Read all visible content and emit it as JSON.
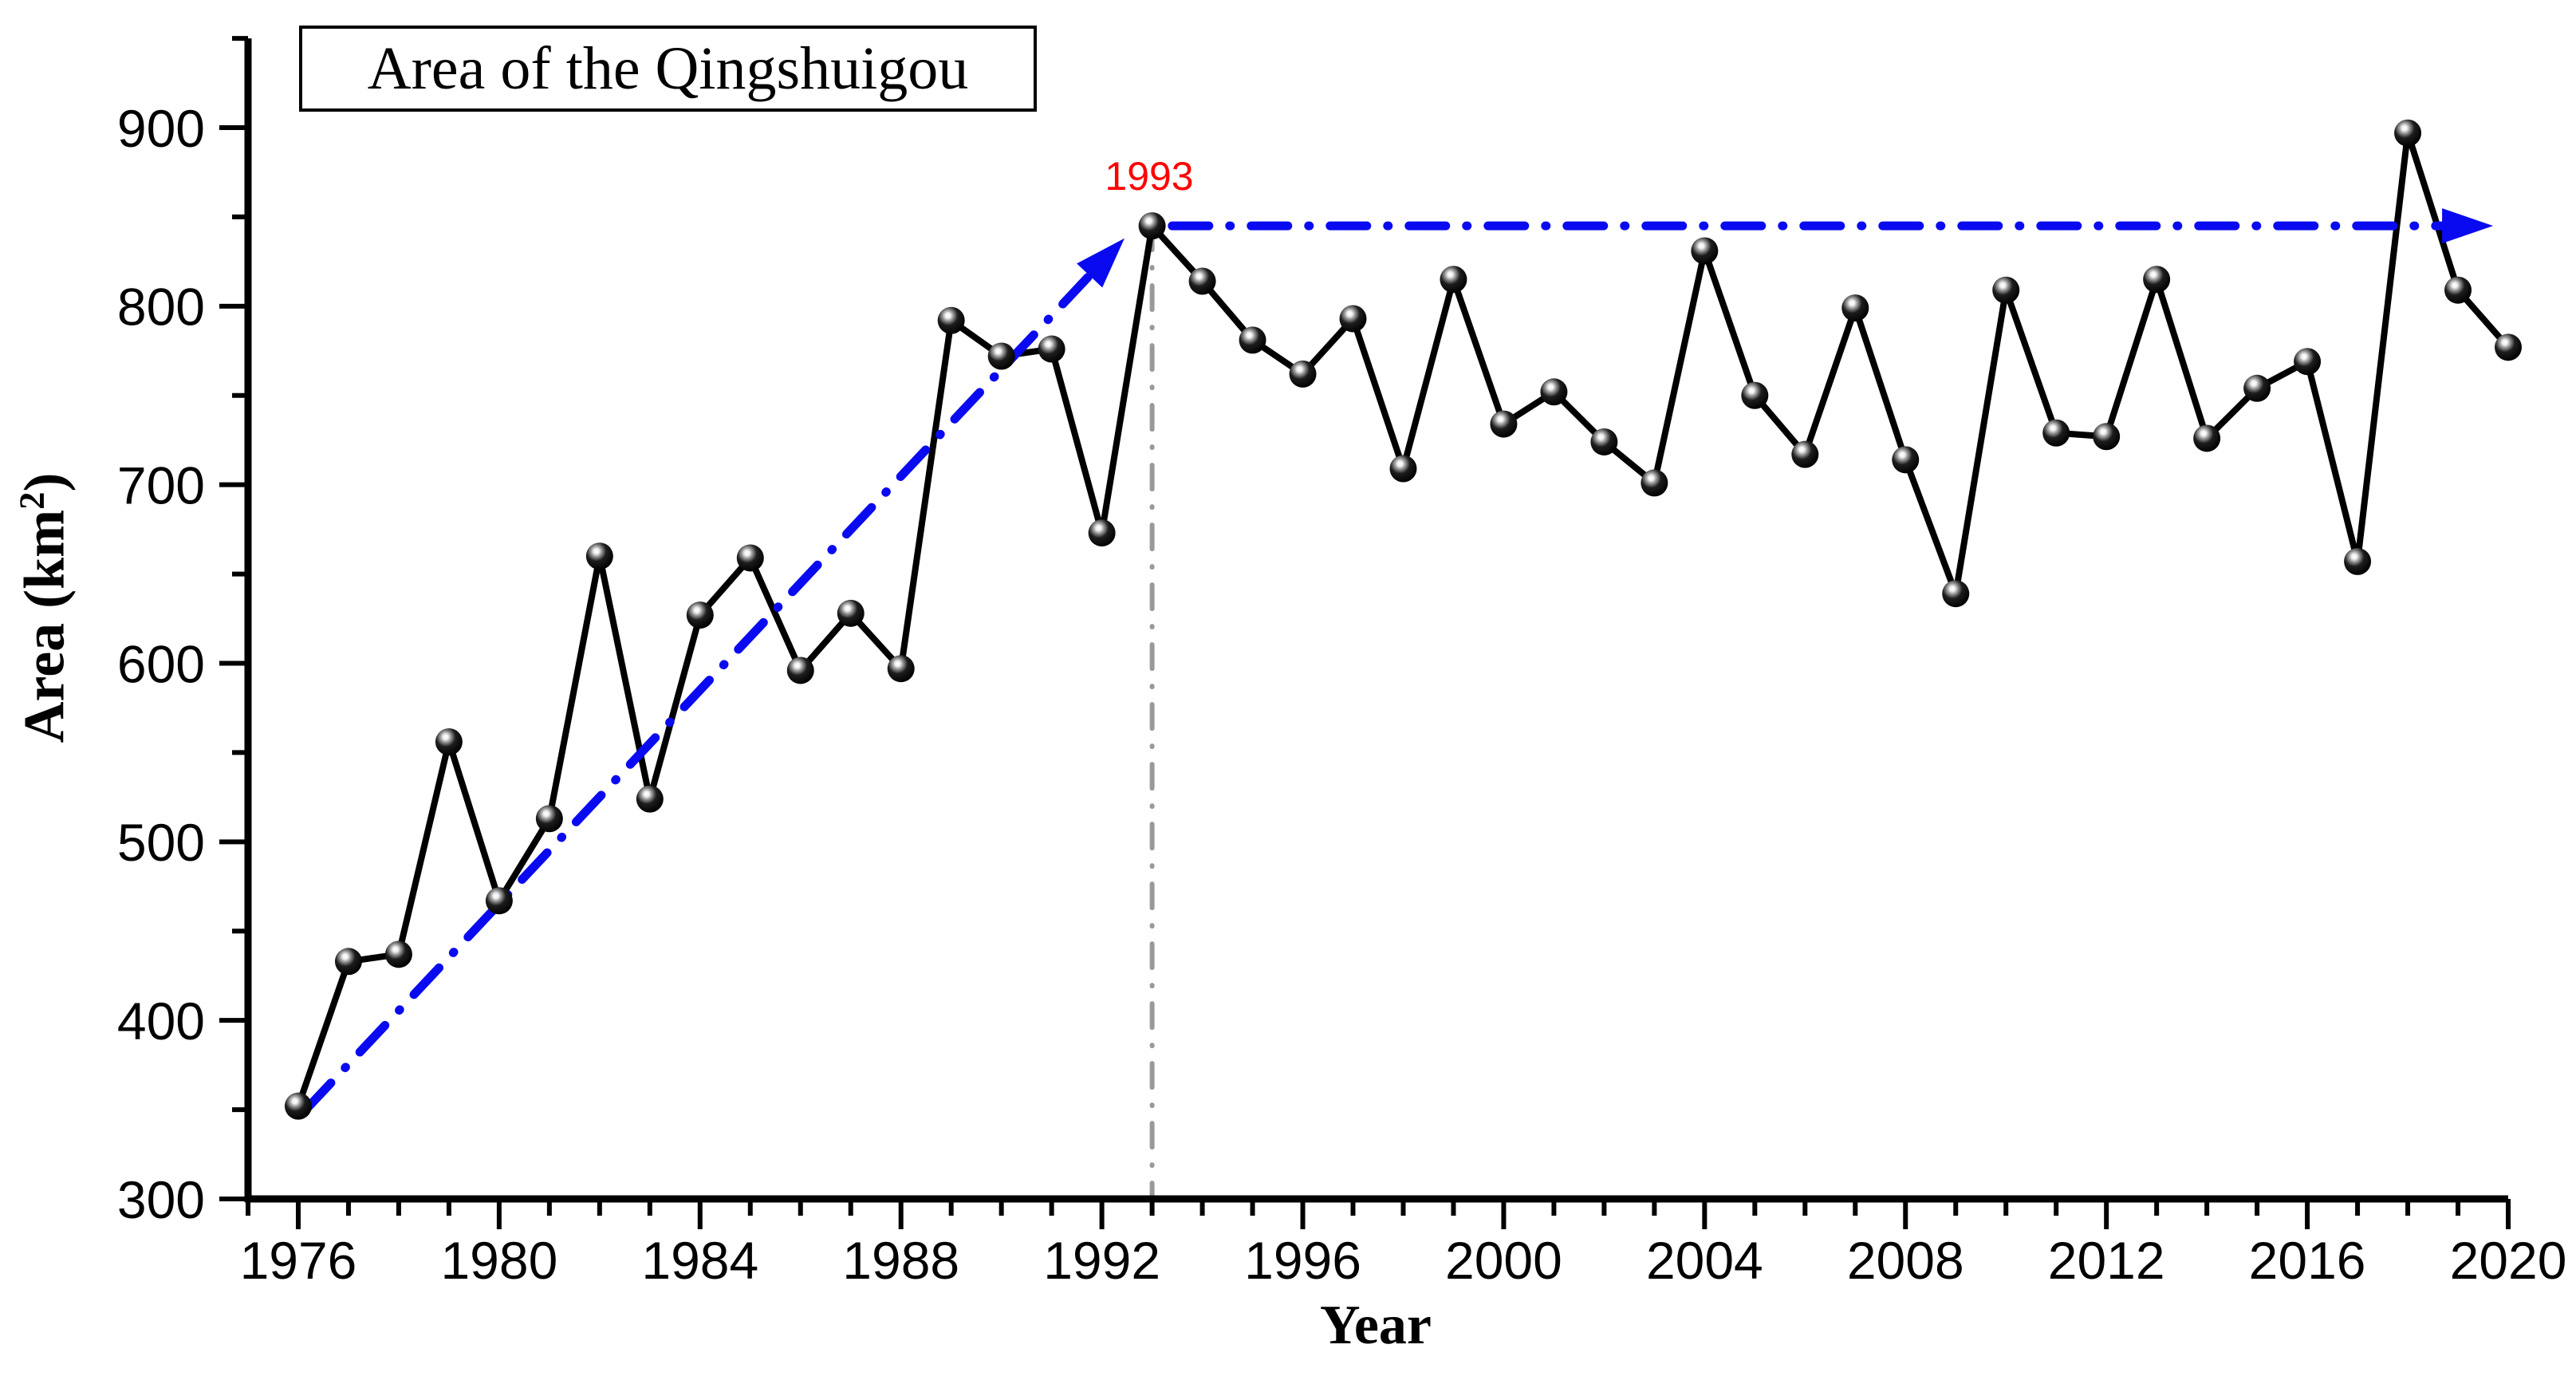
{
  "chart_data": {
    "type": "line",
    "title": "Area of the Qingshuigou",
    "xlabel": "Year",
    "ylabel": "Area (km2)",
    "ylabel_parts": {
      "prefix": "Area (km",
      "sup": "2",
      "suffix": ")"
    },
    "annotation": {
      "text": "1993",
      "year": 1993,
      "color": "#ff0000"
    },
    "x": [
      1976,
      1977,
      1978,
      1979,
      1980,
      1981,
      1982,
      1983,
      1984,
      1985,
      1986,
      1987,
      1988,
      1989,
      1990,
      1991,
      1992,
      1993,
      1994,
      1995,
      1996,
      1997,
      1998,
      1999,
      2000,
      2001,
      2002,
      2003,
      2004,
      2005,
      2006,
      2007,
      2008,
      2009,
      2010,
      2011,
      2012,
      2013,
      2014,
      2015,
      2016,
      2017,
      2018,
      2019,
      2020
    ],
    "values": [
      352,
      433,
      437,
      556,
      467,
      513,
      660,
      524,
      627,
      659,
      596,
      628,
      597,
      792,
      772,
      776,
      673,
      845,
      814,
      781,
      762,
      793,
      709,
      815,
      734,
      752,
      724,
      701,
      831,
      750,
      717,
      799,
      714,
      639,
      809,
      729,
      727,
      815,
      726,
      754,
      769,
      657,
      897,
      809,
      777
    ],
    "xlim": [
      1975,
      2020
    ],
    "ylim": [
      300,
      950
    ],
    "x_major_ticks": [
      1976,
      1980,
      1984,
      1988,
      1992,
      1996,
      2000,
      2004,
      2008,
      2012,
      2016,
      2020
    ],
    "y_major_ticks": [
      300,
      400,
      500,
      600,
      700,
      800,
      900
    ],
    "x_minor_step": 1,
    "y_minor_step": 50,
    "grid": false,
    "legend": "none (boxed title top-left)",
    "series_color": "#000000",
    "marker_style": "3d-sphere",
    "trend_color": "#0a0af0",
    "vline_color": "#999999",
    "trend_arrows": [
      {
        "from": [
          1976.15,
          350
        ],
        "to": [
          1992.45,
          838
        ]
      },
      {
        "from": [
          1993.4,
          845
        ],
        "to": [
          2019.7,
          845
        ]
      }
    ],
    "vline": {
      "year": 1993,
      "from": 845,
      "to": 302
    }
  }
}
